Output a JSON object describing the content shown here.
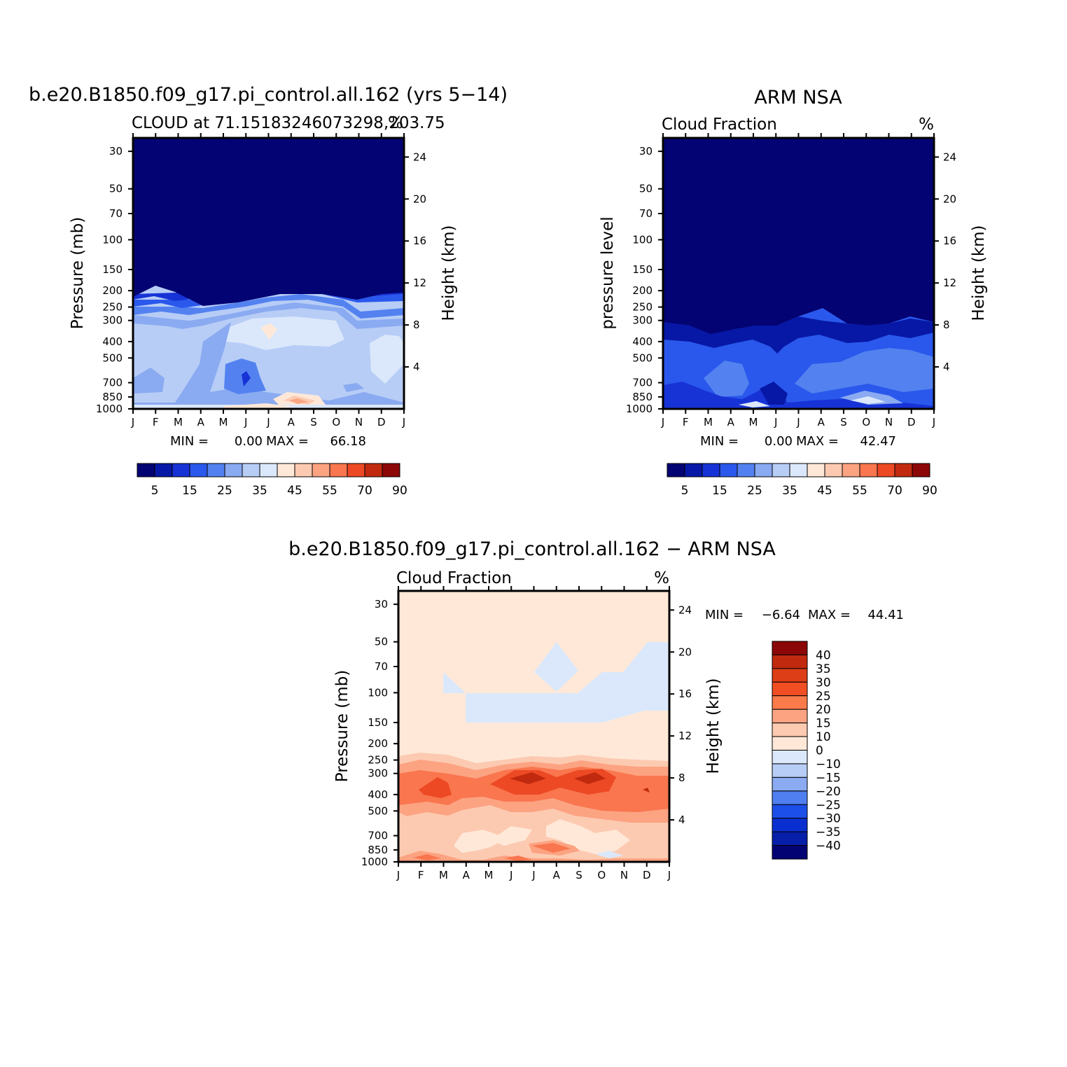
{
  "chart_data": [
    {
      "type": "heatmap",
      "title": "b.e20.B1850.f09_g17.pi_control.all.162 (yrs 5−14)",
      "left_label": "CLOUD at 71.15183246073298,203.75",
      "right_label": "%",
      "ylabel": "Pressure (mb)",
      "y2label": "Height (km)",
      "x_ticks": [
        "J",
        "F",
        "M",
        "A",
        "M",
        "J",
        "J",
        "A",
        "S",
        "O",
        "N",
        "D",
        "J"
      ],
      "y_ticks": [
        "30",
        "50",
        "70",
        "100",
        "150",
        "200",
        "250",
        "300",
        "400",
        "500",
        "700",
        "850",
        "1000"
      ],
      "y2_ticks": [
        "24",
        "20",
        "16",
        "12",
        "8",
        "4"
      ],
      "stats": {
        "min_label": "MIN =",
        "min": "0.00",
        "max_label": "MAX =",
        "max": "66.18"
      },
      "colorbar": {
        "orientation": "horizontal",
        "colors": [
          "#030373",
          "#0718a6",
          "#1733d6",
          "#2a58ec",
          "#5382f0",
          "#8aaaf1",
          "#b7cdf6",
          "#dbe8fb",
          "#ffe8d8",
          "#fccab1",
          "#fca382",
          "#f9764e",
          "#ec4924",
          "#c12a0f",
          "#8c0707"
        ],
        "labels": [
          "5",
          "15",
          "25",
          "35",
          "45",
          "55",
          "70",
          "90"
        ],
        "levels": [
          5,
          10,
          15,
          20,
          25,
          30,
          35,
          40,
          45,
          50,
          55,
          60,
          70,
          80,
          90
        ]
      }
    },
    {
      "type": "heatmap",
      "title": "ARM NSA",
      "left_label": "Cloud Fraction",
      "right_label": "%",
      "ylabel": "pressure level",
      "y2label": "Height (km)",
      "x_ticks": [
        "J",
        "F",
        "M",
        "A",
        "M",
        "J",
        "J",
        "A",
        "S",
        "O",
        "N",
        "D",
        "J"
      ],
      "y_ticks": [
        "30",
        "50",
        "70",
        "100",
        "150",
        "200",
        "250",
        "300",
        "400",
        "500",
        "700",
        "850",
        "1000"
      ],
      "y2_ticks": [
        "24",
        "20",
        "16",
        "12",
        "8",
        "4"
      ],
      "stats": {
        "min_label": "MIN =",
        "min": "0.00",
        "max_label": "MAX =",
        "max": "42.47"
      },
      "colorbar": {
        "orientation": "horizontal",
        "colors": [
          "#030373",
          "#0718a6",
          "#1733d6",
          "#2a58ec",
          "#5382f0",
          "#8aaaf1",
          "#b7cdf6",
          "#dbe8fb",
          "#ffe8d8",
          "#fccab1",
          "#fca382",
          "#f9764e",
          "#ec4924",
          "#c12a0f",
          "#8c0707"
        ],
        "labels": [
          "5",
          "15",
          "25",
          "35",
          "45",
          "55",
          "70",
          "90"
        ]
      }
    },
    {
      "type": "heatmap",
      "title": "b.e20.B1850.f09_g17.pi_control.all.162 − ARM NSA",
      "left_label": "Cloud Fraction",
      "right_label": "%",
      "ylabel": "Pressure (mb)",
      "y2label": "Height (km)",
      "x_ticks": [
        "J",
        "F",
        "M",
        "A",
        "M",
        "J",
        "J",
        "A",
        "S",
        "O",
        "N",
        "D",
        "J"
      ],
      "y_ticks": [
        "30",
        "50",
        "70",
        "100",
        "150",
        "200",
        "250",
        "300",
        "400",
        "500",
        "700",
        "850",
        "1000"
      ],
      "y2_ticks": [
        "24",
        "20",
        "16",
        "12",
        "8",
        "4"
      ],
      "stats": {
        "min_label": "MIN =",
        "min": "−6.64",
        "max_label": "MAX =",
        "max": "44.41"
      },
      "colorbar": {
        "orientation": "vertical",
        "colors_top_to_bottom": [
          "#8c0707",
          "#c12a0f",
          "#dd3d17",
          "#f24e24",
          "#fa7a4a",
          "#fca382",
          "#fccab1",
          "#ffe8d8",
          "#dbe8fb",
          "#b7cdf6",
          "#8aaaf1",
          "#4f7ff0",
          "#1c4fea",
          "#0a2fd0",
          "#061ea8",
          "#030373"
        ],
        "labels": [
          "40",
          "35",
          "30",
          "25",
          "20",
          "15",
          "10",
          "0",
          "−10",
          "−15",
          "−20",
          "−25",
          "−30",
          "−35",
          "−40"
        ]
      }
    }
  ]
}
